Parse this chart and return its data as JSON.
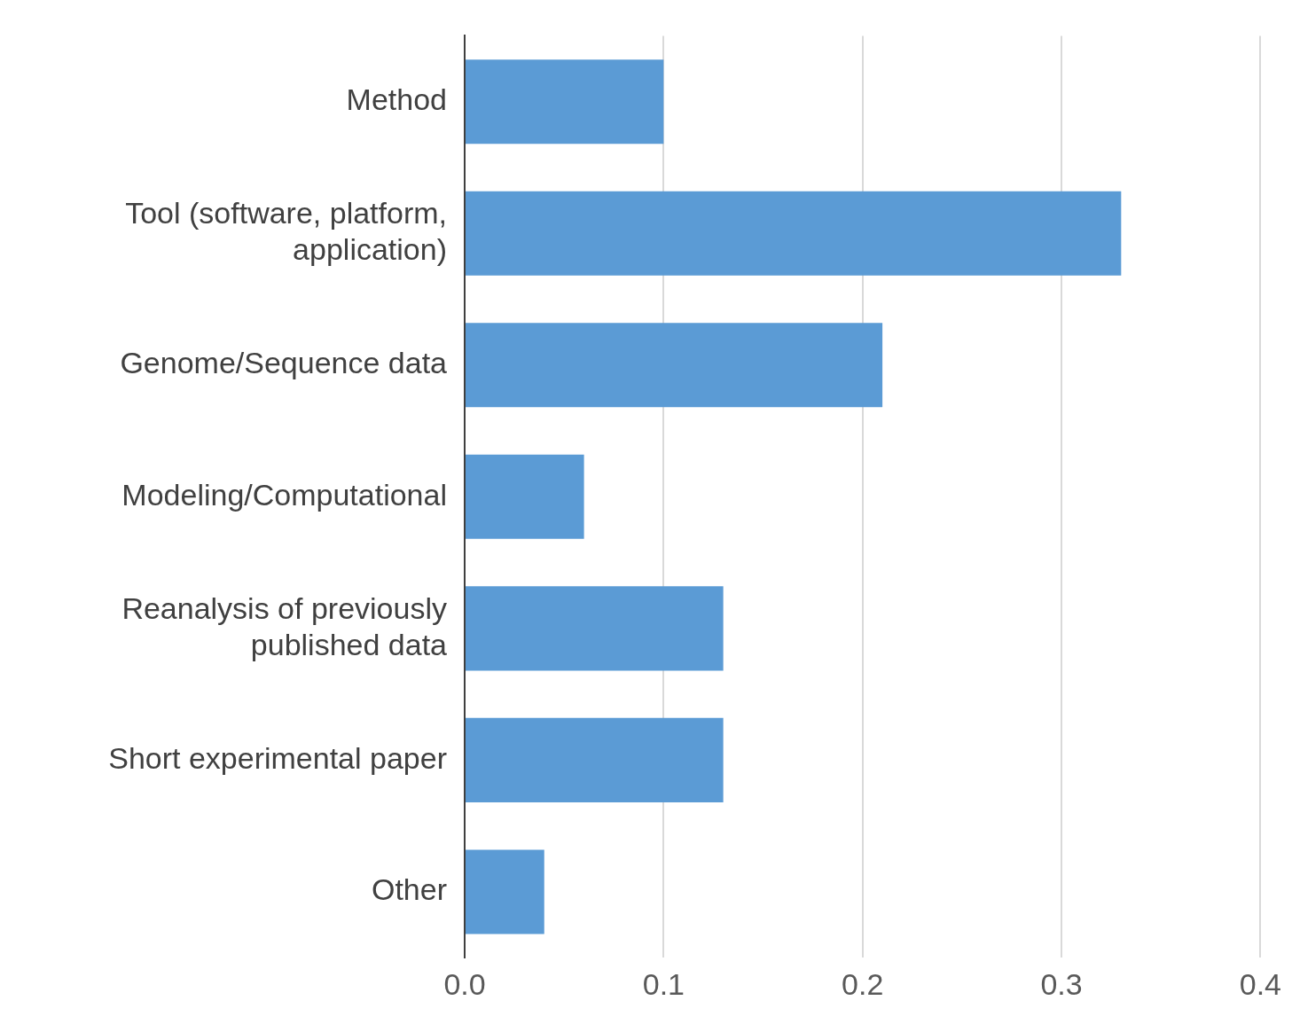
{
  "chart_data": {
    "type": "bar",
    "orientation": "horizontal",
    "categories": [
      "Method",
      "Tool (software, platform, application)",
      "Genome/Sequence data",
      "Modeling/Computational",
      "Reanalysis of previously published data",
      "Short experimental paper",
      "Other"
    ],
    "values": [
      0.1,
      0.33,
      0.21,
      0.06,
      0.13,
      0.13,
      0.04
    ],
    "color": "#5b9bd5",
    "xlim": [
      0,
      0.4
    ],
    "xticks": [
      {
        "value": 0,
        "label": "0.0"
      },
      0.1,
      0.2,
      0.3,
      0.4
    ],
    "grid": "x",
    "legend": false
  }
}
